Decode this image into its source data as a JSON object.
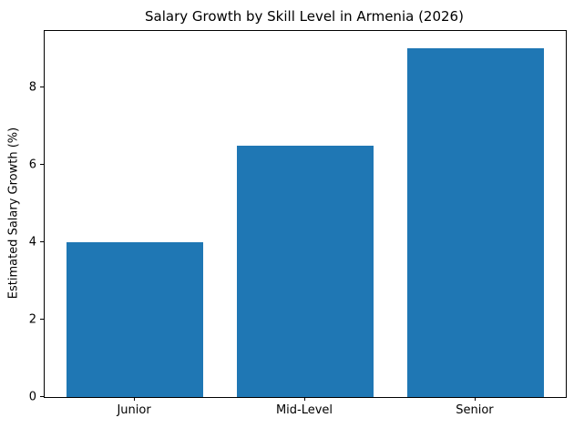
{
  "chart_data": {
    "type": "bar",
    "title": "Salary Growth by Skill Level in Armenia (2026)",
    "categories": [
      "Junior",
      "Mid-Level",
      "Senior"
    ],
    "values": [
      4,
      6.5,
      9
    ],
    "xlabel": "",
    "ylabel": "Estimated Salary Growth (%)",
    "yticks": [
      0,
      2,
      4,
      6,
      8
    ],
    "ylim": [
      0,
      9.45
    ],
    "bar_color": "#1f77b4",
    "bar_width_fraction": 0.8,
    "x_padding": 0.53,
    "grid": false,
    "legend": "none",
    "spine_color": "#000000",
    "background_color": "#ffffff"
  }
}
